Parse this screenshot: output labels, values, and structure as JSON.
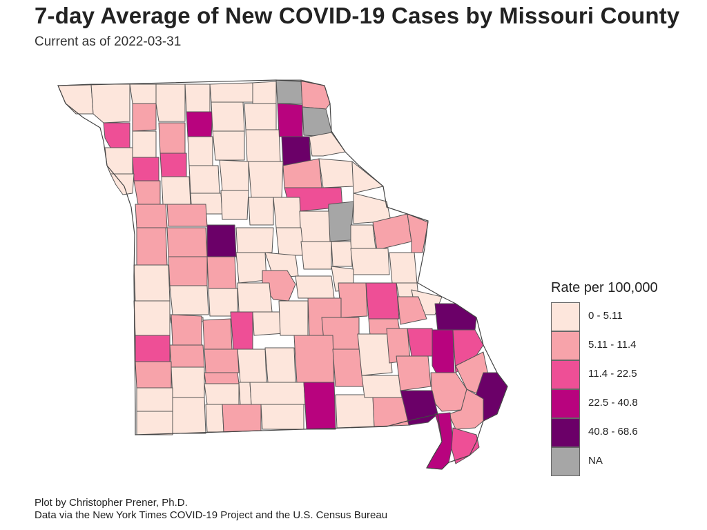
{
  "title": "7-day Average of New COVID-19 Cases by Missouri County",
  "subtitle": "Current as of 2022-03-31",
  "legend": {
    "title": "Rate per 100,000",
    "items": [
      {
        "label": "0 - 5.11",
        "color": "#fde6dc"
      },
      {
        "label": "5.11 - 11.4",
        "color": "#f7a3aa"
      },
      {
        "label": "11.4 - 22.5",
        "color": "#ee4f96"
      },
      {
        "label": "22.5 - 40.8",
        "color": "#b8037e"
      },
      {
        "label": "40.8 - 68.6",
        "color": "#6b0068"
      },
      {
        "label": "NA",
        "color": "#a6a6a6"
      }
    ]
  },
  "caption": {
    "line1": "Plot by Christopher Prener, Ph.D.",
    "line2": "Data via the New York Times COVID-19 Project and the U.S. Census Bureau"
  },
  "map_data": {
    "state": "Missouri",
    "county_class_legend_index": {
      "c0": 0,
      "c1": 1,
      "c2": 2,
      "c3": 3,
      "c4": 4,
      "na": 5
    }
  }
}
